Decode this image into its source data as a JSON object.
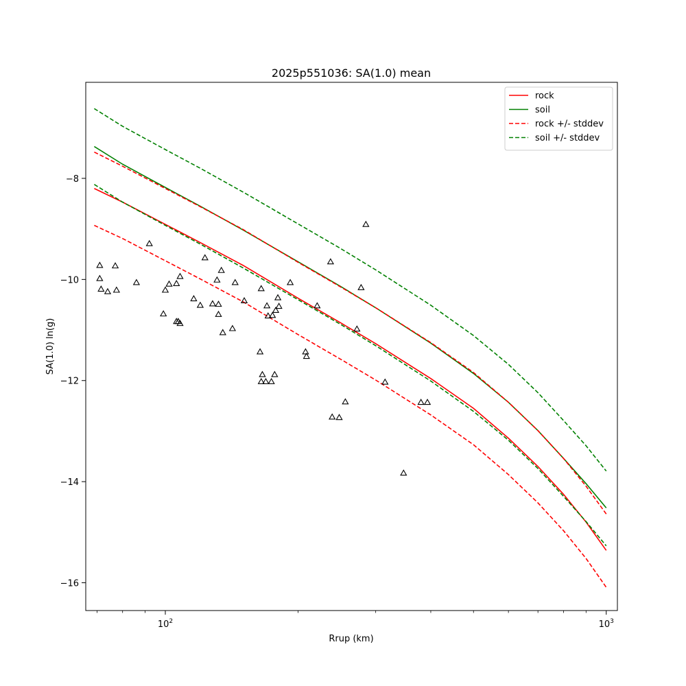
{
  "chart_data": {
    "type": "line",
    "title": "2025p551036: SA(1.0) mean",
    "xlabel": "Rrup (km)",
    "ylabel": "SA(1.0) ln(g)",
    "xscale": "log",
    "xlim": [
      66,
      1060
    ],
    "ylim": [
      -16.55,
      -6.1
    ],
    "x_ticks": [
      {
        "value": 100,
        "label": "10",
        "sup": "2"
      },
      {
        "value": 1000,
        "label": "10",
        "sup": "3"
      }
    ],
    "y_ticks": [
      {
        "value": -8,
        "label": "−8"
      },
      {
        "value": -10,
        "label": "−10"
      },
      {
        "value": -12,
        "label": "−12"
      },
      {
        "value": -14,
        "label": "−14"
      },
      {
        "value": -16,
        "label": "−16"
      }
    ],
    "grid": false,
    "legend": {
      "position": "top-right",
      "entries": [
        {
          "label": "rock",
          "color": "#ff0000",
          "dash": false
        },
        {
          "label": "soil",
          "color": "#008000",
          "dash": false
        },
        {
          "label": "rock +/- stddev",
          "color": "#ff0000",
          "dash": true
        },
        {
          "label": "soil +/- stddev",
          "color": "#008000",
          "dash": true
        }
      ]
    },
    "curve_x": [
      69,
      80,
      100,
      120,
      150,
      200,
      250,
      300,
      400,
      500,
      600,
      700,
      800,
      900,
      1000
    ],
    "series": [
      {
        "name": "rock",
        "color": "#ff0000",
        "dash": false,
        "values": [
          -8.2,
          -8.47,
          -8.91,
          -9.27,
          -9.72,
          -10.37,
          -10.86,
          -11.27,
          -11.96,
          -12.55,
          -13.14,
          -13.7,
          -14.25,
          -14.8,
          -15.36
        ]
      },
      {
        "name": "soil",
        "color": "#008000",
        "dash": false,
        "values": [
          -7.37,
          -7.72,
          -8.18,
          -8.55,
          -9.02,
          -9.65,
          -10.14,
          -10.56,
          -11.26,
          -11.86,
          -12.43,
          -12.99,
          -13.54,
          -14.04,
          -14.52
        ]
      },
      {
        "name": "rock +/- stddev",
        "role": "rock-upper",
        "color": "#ff0000",
        "dash": true,
        "values": [
          -7.48,
          -7.76,
          -8.2,
          -8.56,
          -9.01,
          -9.66,
          -10.15,
          -10.56,
          -11.25,
          -11.84,
          -12.43,
          -12.99,
          -13.54,
          -14.09,
          -14.64
        ]
      },
      {
        "name": "rock +/- stddev",
        "role": "rock-lower",
        "color": "#ff0000",
        "dash": true,
        "values": [
          -8.93,
          -9.19,
          -9.63,
          -9.99,
          -10.44,
          -11.09,
          -11.58,
          -11.99,
          -12.68,
          -13.27,
          -13.86,
          -14.42,
          -14.97,
          -15.52,
          -16.09
        ]
      },
      {
        "name": "soil +/- stddev",
        "role": "soil-upper",
        "color": "#008000",
        "dash": true,
        "values": [
          -6.62,
          -6.97,
          -7.43,
          -7.8,
          -8.27,
          -8.9,
          -9.39,
          -9.81,
          -10.51,
          -11.11,
          -11.68,
          -12.24,
          -12.79,
          -13.29,
          -13.79
        ]
      },
      {
        "name": "soil +/- stddev",
        "role": "soil-lower",
        "color": "#008000",
        "dash": true,
        "values": [
          -8.12,
          -8.47,
          -8.93,
          -9.3,
          -9.77,
          -10.4,
          -10.89,
          -11.31,
          -12.01,
          -12.61,
          -13.18,
          -13.74,
          -14.29,
          -14.79,
          -15.27
        ]
      }
    ],
    "observations": {
      "marker": "triangle-open",
      "color": "#000000",
      "points": [
        [
          71,
          -9.72
        ],
        [
          71,
          -9.98
        ],
        [
          71.5,
          -10.19
        ],
        [
          74,
          -10.24
        ],
        [
          77,
          -9.73
        ],
        [
          77.5,
          -10.21
        ],
        [
          86,
          -10.06
        ],
        [
          92,
          -9.29
        ],
        [
          99,
          -10.68
        ],
        [
          100,
          -10.21
        ],
        [
          102,
          -10.09
        ],
        [
          106,
          -10.08
        ],
        [
          106,
          -10.83
        ],
        [
          107,
          -10.83
        ],
        [
          108,
          -9.94
        ],
        [
          108,
          -10.87
        ],
        [
          116,
          -10.38
        ],
        [
          120,
          -10.51
        ],
        [
          123,
          -9.57
        ],
        [
          128,
          -10.48
        ],
        [
          131,
          -10.01
        ],
        [
          132,
          -10.49
        ],
        [
          132,
          -10.69
        ],
        [
          134,
          -9.82
        ],
        [
          135,
          -11.05
        ],
        [
          142,
          -10.97
        ],
        [
          144,
          -10.06
        ],
        [
          151,
          -10.42
        ],
        [
          164,
          -11.43
        ],
        [
          165,
          -10.18
        ],
        [
          165,
          -12.02
        ],
        [
          166,
          -11.88
        ],
        [
          169,
          -12.02
        ],
        [
          170,
          -10.52
        ],
        [
          171,
          -10.72
        ],
        [
          174,
          -12.02
        ],
        [
          175,
          -10.71
        ],
        [
          177,
          -11.88
        ],
        [
          178,
          -10.61
        ],
        [
          180,
          -10.36
        ],
        [
          181,
          -10.53
        ],
        [
          192,
          -10.06
        ],
        [
          208,
          -11.43
        ],
        [
          209,
          -11.52
        ],
        [
          221,
          -10.52
        ],
        [
          237,
          -9.65
        ],
        [
          239,
          -12.72
        ],
        [
          248,
          -12.73
        ],
        [
          256,
          -12.42
        ],
        [
          272,
          -10.98
        ],
        [
          278,
          -10.16
        ],
        [
          285,
          -8.91
        ],
        [
          315,
          -12.03
        ],
        [
          347,
          -13.83
        ],
        [
          380,
          -12.43
        ],
        [
          393,
          -12.43
        ]
      ]
    }
  }
}
